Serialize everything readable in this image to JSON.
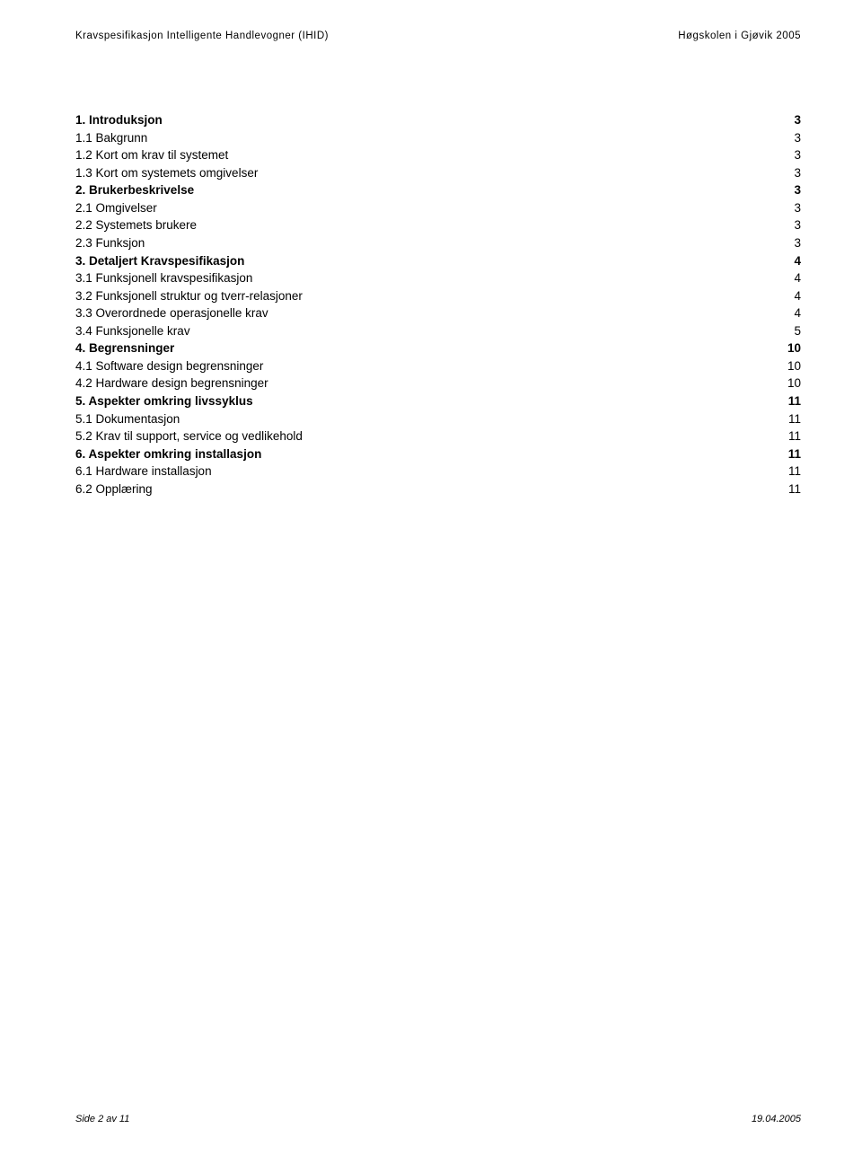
{
  "header": {
    "left": "Kravspesifikasjon Intelligente Handlevogner (IHID)",
    "right": "Høgskolen i Gjøvik 2005"
  },
  "toc": [
    {
      "label": "1. Introduksjon",
      "page": "3",
      "bold": true
    },
    {
      "label": "1.1 Bakgrunn",
      "page": "3",
      "bold": false
    },
    {
      "label": "1.2 Kort om krav til systemet",
      "page": "3",
      "bold": false
    },
    {
      "label": "1.3 Kort om systemets omgivelser",
      "page": "3",
      "bold": false
    },
    {
      "label": "2. Brukerbeskrivelse",
      "page": "3",
      "bold": true
    },
    {
      "label": "2.1 Omgivelser",
      "page": "3",
      "bold": false
    },
    {
      "label": "2.2 Systemets brukere",
      "page": "3",
      "bold": false
    },
    {
      "label": "2.3 Funksjon",
      "page": "3",
      "bold": false
    },
    {
      "label": "3. Detaljert Kravspesifikasjon",
      "page": "4",
      "bold": true
    },
    {
      "label": "3.1 Funksjonell kravspesifikasjon",
      "page": "4",
      "bold": false
    },
    {
      "label": "3.2 Funksjonell struktur og tverr-relasjoner",
      "page": "4",
      "bold": false
    },
    {
      "label": "3.3 Overordnede operasjonelle krav",
      "page": "4",
      "bold": false
    },
    {
      "label": "3.4 Funksjonelle krav",
      "page": "5",
      "bold": false
    },
    {
      "label": "4. Begrensninger",
      "page": "10",
      "bold": true
    },
    {
      "label": "4.1 Software design begrensninger",
      "page": "10",
      "bold": false
    },
    {
      "label": "4.2 Hardware design begrensninger",
      "page": "10",
      "bold": false
    },
    {
      "label": "5. Aspekter omkring livssyklus",
      "page": "11",
      "bold": true
    },
    {
      "label": "5.1 Dokumentasjon",
      "page": "11",
      "bold": false
    },
    {
      "label": "5.2 Krav til support, service og vedlikehold",
      "page": "11",
      "bold": false
    },
    {
      "label": "6. Aspekter omkring installasjon",
      "page": "11",
      "bold": true
    },
    {
      "label": "6.1 Hardware installasjon",
      "page": "11",
      "bold": false
    },
    {
      "label": "6.2 Opplæring",
      "page": "11",
      "bold": false
    }
  ],
  "footer": {
    "left": "Side 2 av 11",
    "right": "19.04.2005"
  }
}
